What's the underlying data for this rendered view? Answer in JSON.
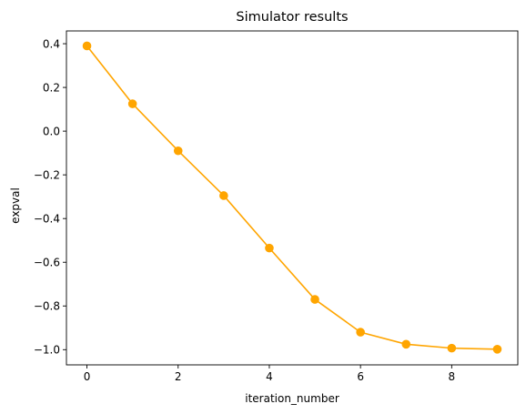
{
  "chart_data": {
    "type": "line",
    "title": "Simulator results",
    "xlabel": "iteration_number",
    "ylabel": "expval",
    "xlim": [
      -0.45,
      9.45
    ],
    "ylim": [
      -1.0695,
      0.4585
    ],
    "xticks": [
      0,
      2,
      4,
      6,
      8
    ],
    "xtick_labels": [
      "0",
      "2",
      "4",
      "6",
      "8"
    ],
    "yticks": [
      0.4,
      0.2,
      0.0,
      -0.2,
      -0.4,
      -0.6,
      -0.8,
      -1.0
    ],
    "ytick_labels": [
      "0.4",
      "0.2",
      "0.0",
      "−0.2",
      "−0.4",
      "−0.6",
      "−0.8",
      "−1.0"
    ],
    "grid": false,
    "color": "#FFA500",
    "marker": "circle",
    "series": [
      {
        "x": [
          0,
          1,
          2,
          3,
          4,
          5,
          6,
          7,
          8,
          9
        ],
        "y": [
          0.39,
          0.125,
          -0.09,
          -0.295,
          -0.535,
          -0.77,
          -0.92,
          -0.975,
          -0.993,
          -0.998
        ]
      }
    ]
  }
}
